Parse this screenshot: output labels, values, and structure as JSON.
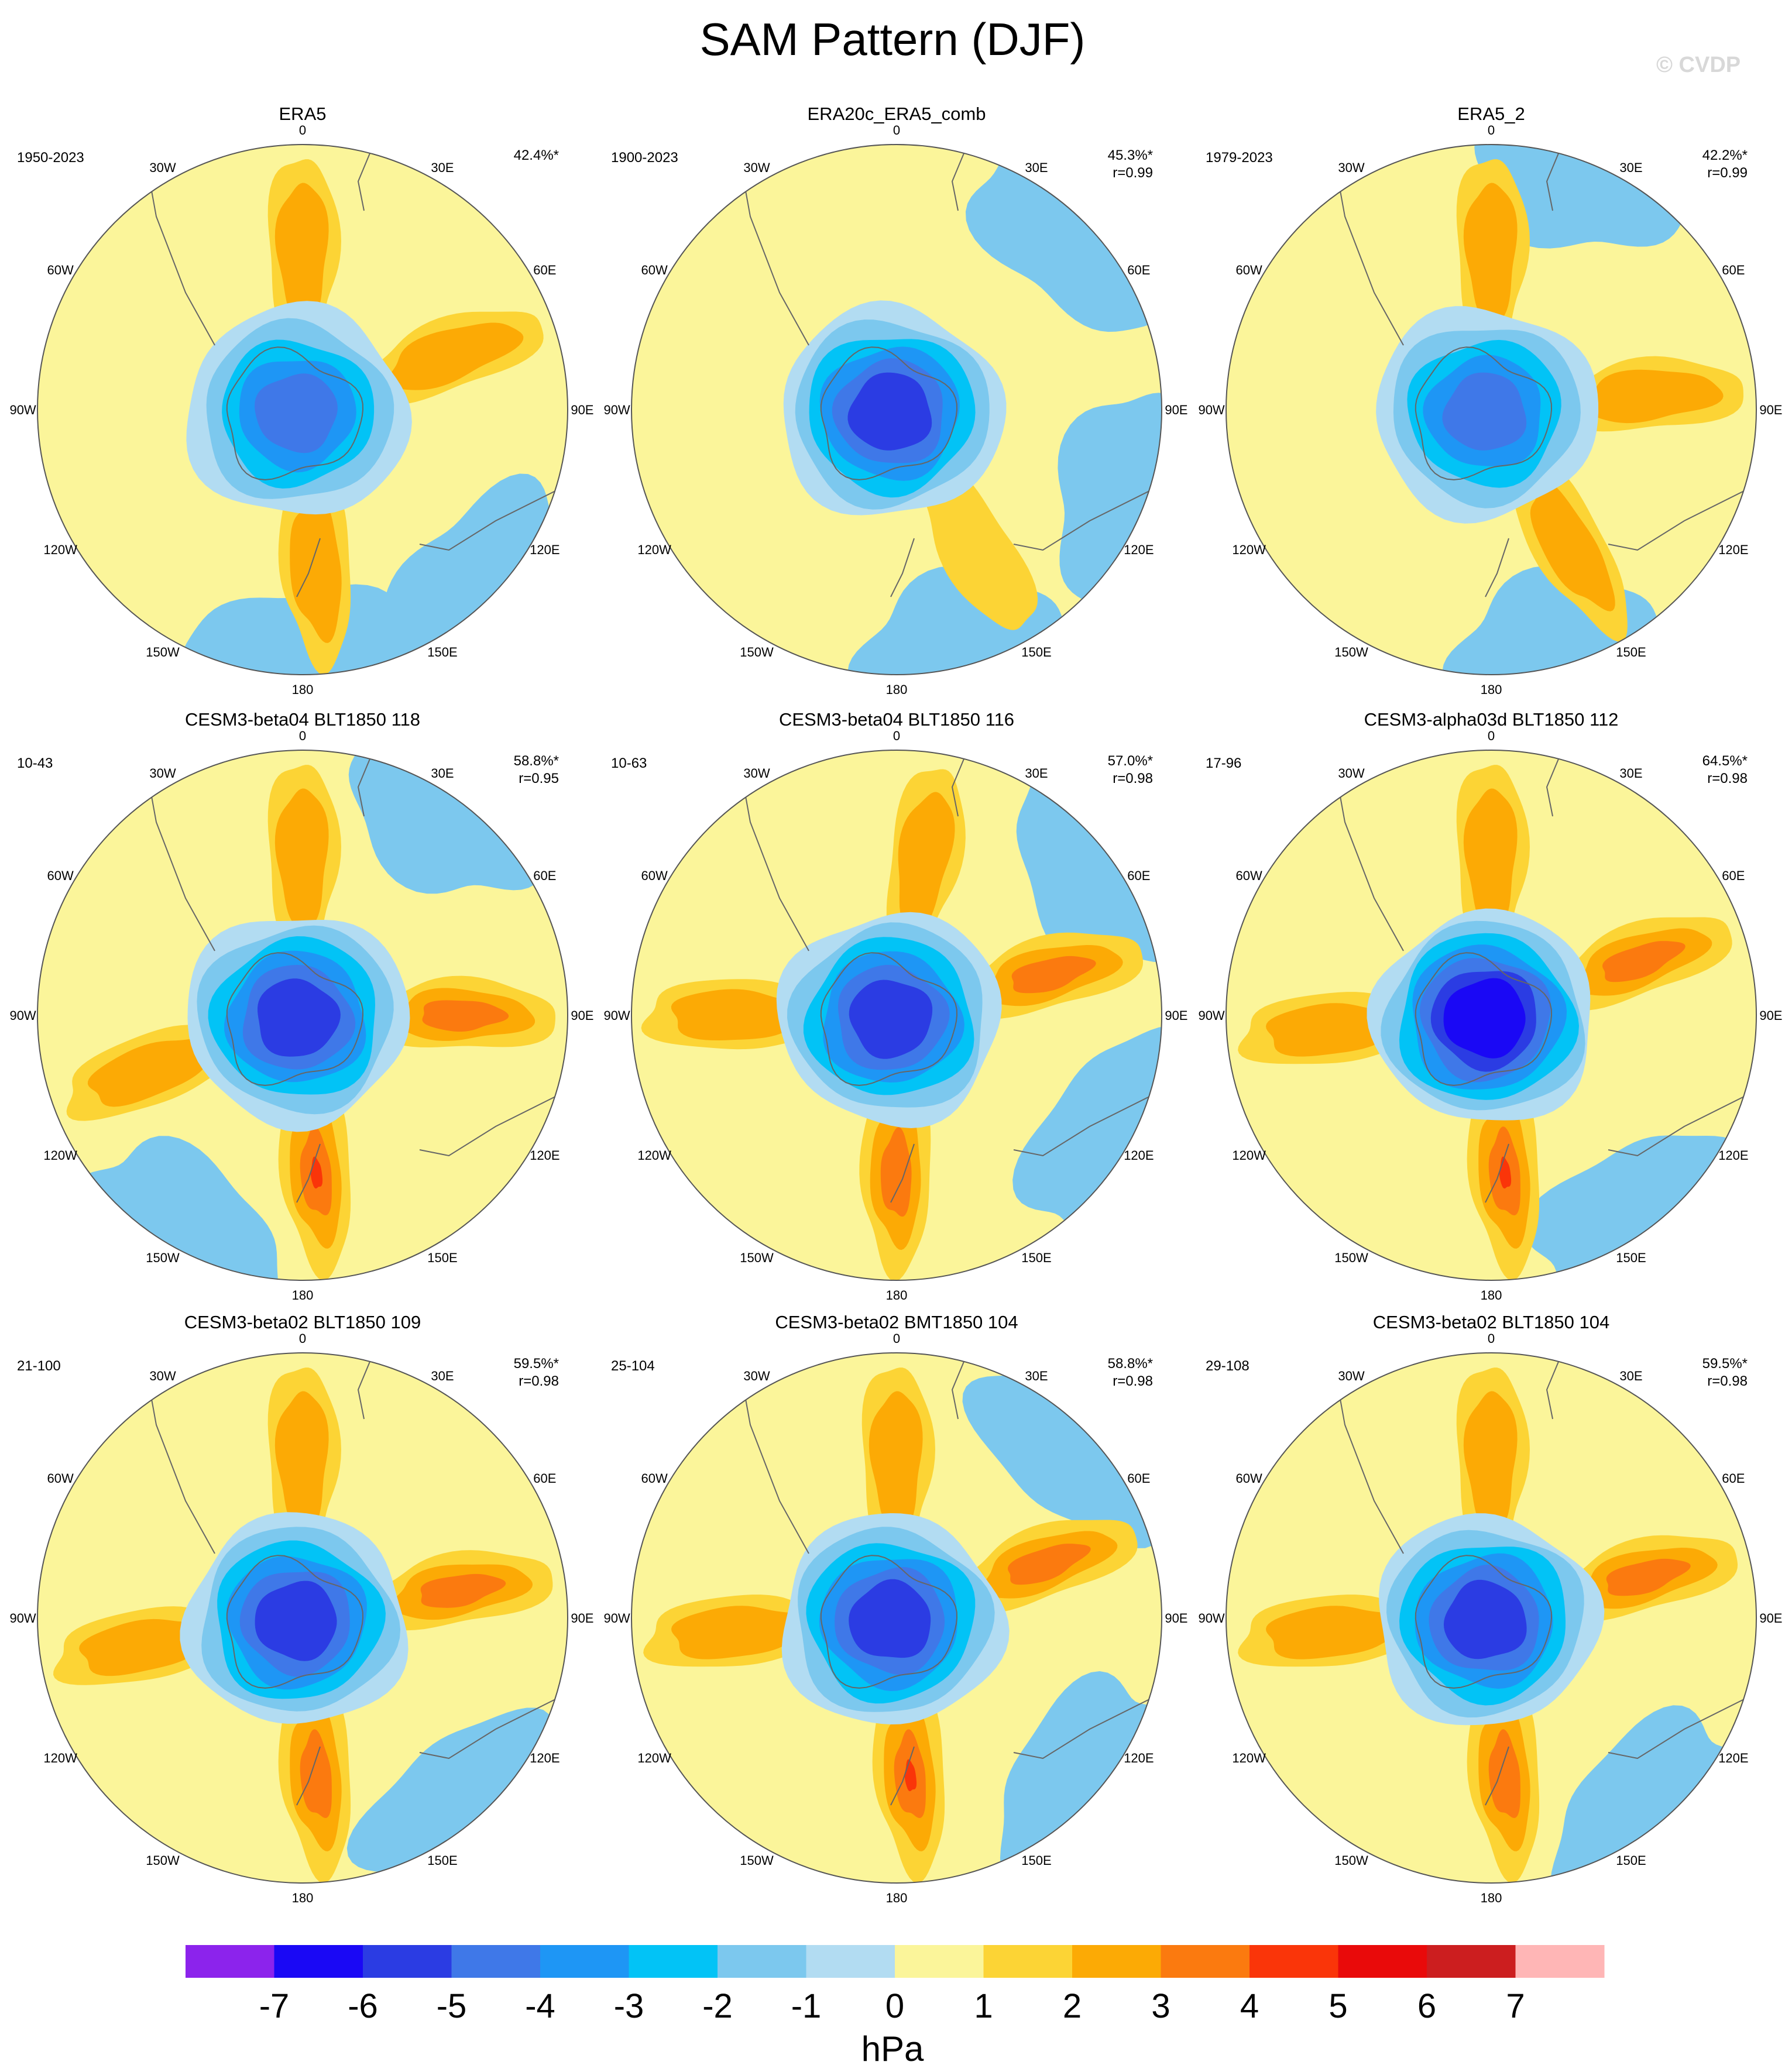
{
  "figure": {
    "title": "SAM Pattern (DJF)",
    "watermark": "© CVDP",
    "colorbar_units": "hPa"
  },
  "lon_labels": [
    "0",
    "30E",
    "60E",
    "90E",
    "120E",
    "150E",
    "180",
    "150W",
    "120W",
    "90W",
    "60W",
    "30W"
  ],
  "colors": {
    "levels": [
      "#8c23ec",
      "#1a08f5",
      "#2b3ce3",
      "#3f78e8",
      "#1e96f5",
      "#02c3f6",
      "#7cc8ee",
      "#b2dcf2",
      "#fbf59a",
      "#fcd435",
      "#fcaa05",
      "#fb7a0f",
      "#fa3509",
      "#e90a0a",
      "#cc1e1f",
      "#ffb6b6"
    ],
    "land_outline": "#666666"
  },
  "chart_data": {
    "type": "polar_contour_maps",
    "panels": [
      {
        "name": "ERA5",
        "years": "1950-2023",
        "pct": "42.4%*",
        "r": "",
        "pattern_correlation": null,
        "core_min_hPa": -4,
        "ring_max_hPa": 2,
        "lobes": [
          [
            0,
            2
          ],
          [
            70,
            2
          ],
          [
            175,
            2
          ]
        ],
        "blue_patches": [
          [
            135,
            -1
          ],
          [
            180,
            -1
          ]
        ]
      },
      {
        "name": "ERA20c_ERA5_comb",
        "years": "1900-2023",
        "pct": "45.3%*",
        "r": "r=0.99",
        "pattern_correlation": 0.99,
        "core_min_hPa": -5,
        "ring_max_hPa": 1,
        "lobes": [
          [
            150,
            1
          ]
        ],
        "blue_patches": [
          [
            45,
            -1
          ],
          [
            110,
            -1
          ],
          [
            165,
            -1
          ]
        ]
      },
      {
        "name": "ERA5_2",
        "years": "1979-2023",
        "pct": "42.2%*",
        "r": "r=0.99",
        "pattern_correlation": 0.99,
        "core_min_hPa": -4,
        "ring_max_hPa": 2,
        "lobes": [
          [
            0,
            2
          ],
          [
            85,
            2
          ],
          [
            150,
            2
          ]
        ],
        "blue_patches": [
          [
            20,
            -1
          ],
          [
            165,
            -1
          ]
        ]
      },
      {
        "name": "CESM3-beta04 BLT1850 118",
        "years": "10-43",
        "pct": "58.8%*",
        "r": "r=0.95",
        "pattern_correlation": 0.95,
        "core_min_hPa": -5,
        "ring_max_hPa": 4,
        "lobes": [
          [
            0,
            2
          ],
          [
            90,
            3
          ],
          [
            175,
            4
          ],
          [
            250,
            2
          ]
        ],
        "blue_patches": [
          [
            35,
            -1
          ],
          [
            210,
            -1
          ]
        ]
      },
      {
        "name": "CESM3-beta04 BLT1850 116",
        "years": "10-63",
        "pct": "57.0%*",
        "r": "r=0.98",
        "pattern_correlation": 0.98,
        "core_min_hPa": -5,
        "ring_max_hPa": 3,
        "lobes": [
          [
            10,
            2
          ],
          [
            75,
            3
          ],
          [
            180,
            3
          ],
          [
            270,
            2
          ]
        ],
        "blue_patches": [
          [
            55,
            -1
          ],
          [
            120,
            -1
          ]
        ]
      },
      {
        "name": "CESM3-alpha03d BLT1850 112",
        "years": "17-96",
        "pct": "64.5%*",
        "r": "r=0.98",
        "pattern_correlation": 0.98,
        "core_min_hPa": -6,
        "ring_max_hPa": 4,
        "lobes": [
          [
            0,
            2
          ],
          [
            70,
            3
          ],
          [
            175,
            4
          ],
          [
            265,
            2
          ]
        ],
        "blue_patches": [
          [
            145,
            -1
          ]
        ]
      },
      {
        "name": "CESM3-beta02 BLT1850 109",
        "years": "21-100",
        "pct": "59.5%*",
        "r": "r=0.98",
        "pattern_correlation": 0.98,
        "core_min_hPa": -5,
        "ring_max_hPa": 3,
        "lobes": [
          [
            0,
            2
          ],
          [
            80,
            3
          ],
          [
            175,
            3
          ],
          [
            260,
            2
          ]
        ],
        "blue_patches": [
          [
            140,
            -1
          ]
        ]
      },
      {
        "name": "CESM3-beta02 BMT1850 104",
        "years": "25-104",
        "pct": "58.8%*",
        "r": "r=0.98",
        "pattern_correlation": 0.98,
        "core_min_hPa": -5,
        "ring_max_hPa": 4,
        "lobes": [
          [
            0,
            2
          ],
          [
            70,
            3
          ],
          [
            175,
            4
          ],
          [
            265,
            2
          ]
        ],
        "blue_patches": [
          [
            45,
            -1
          ],
          [
            130,
            -1
          ]
        ]
      },
      {
        "name": "CESM3-beta02 BLT1850 104",
        "years": "29-108",
        "pct": "59.5%*",
        "r": "r=0.98",
        "pattern_correlation": 0.98,
        "core_min_hPa": -5,
        "ring_max_hPa": 3,
        "lobes": [
          [
            0,
            2
          ],
          [
            75,
            3
          ],
          [
            175,
            3
          ],
          [
            265,
            2
          ]
        ],
        "blue_patches": [
          [
            140,
            -1
          ]
        ]
      }
    ],
    "colorbar": {
      "label": "hPa",
      "tick_labels": [
        "-7",
        "-6",
        "-5",
        "-4",
        "-3",
        "-2",
        "-1",
        "0",
        "1",
        "2",
        "3",
        "4",
        "5",
        "6",
        "7"
      ],
      "ticks": [
        -7,
        -6,
        -5,
        -4,
        -3,
        -2,
        -1,
        0,
        1,
        2,
        3,
        4,
        5,
        6,
        7
      ],
      "range": [
        -8,
        8
      ]
    }
  }
}
